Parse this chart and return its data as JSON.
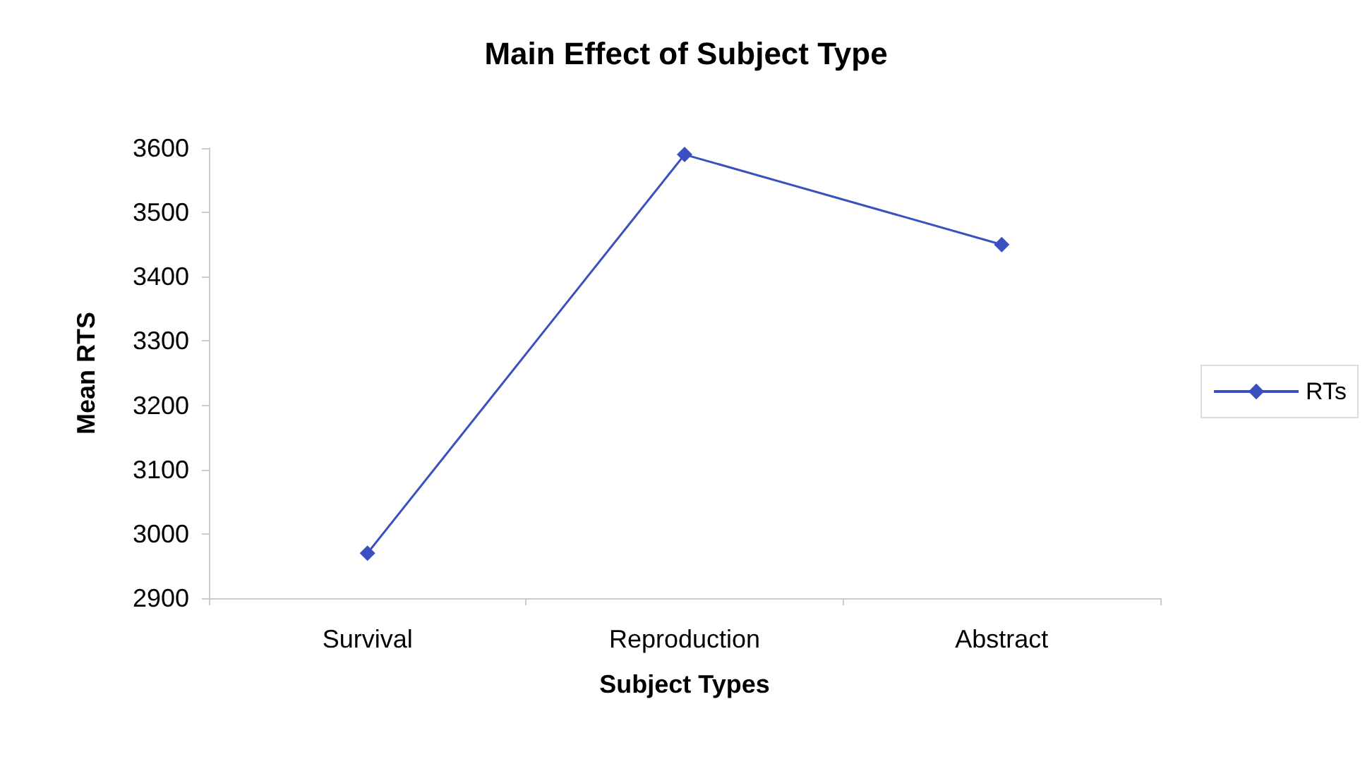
{
  "chart_data": {
    "type": "line",
    "title": "Main Effect of Subject Type",
    "xlabel": "Subject Types",
    "ylabel": "Mean RTS",
    "categories": [
      "Survival",
      "Reproduction",
      "Abstract"
    ],
    "series": [
      {
        "name": "RTs",
        "color": "#3a4fc0",
        "values": [
          2970,
          3590,
          3450
        ]
      }
    ],
    "ylim": [
      2900,
      3600
    ],
    "yticks": [
      2900,
      3000,
      3100,
      3200,
      3300,
      3400,
      3500,
      3600
    ],
    "grid": false,
    "legend": "right",
    "marker": "diamond",
    "line_style": "solid"
  }
}
